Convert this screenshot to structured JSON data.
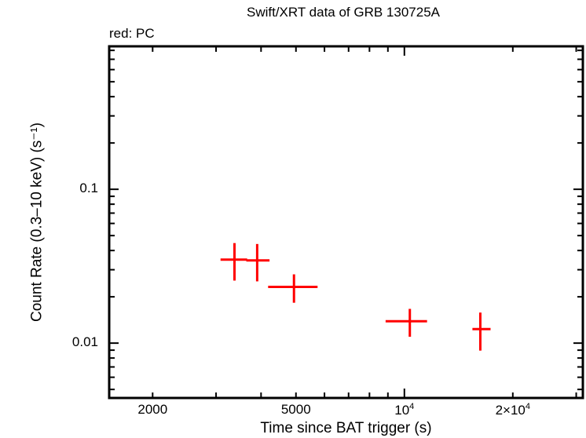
{
  "chart_data": {
    "type": "scatter",
    "title": "Swift/XRT data of GRB 130725A",
    "subtitle": "red: PC",
    "xlabel": "Time since BAT trigger (s)",
    "ylabel": "Count Rate (0.3–10 keV) (s⁻¹)",
    "xscale": "log",
    "yscale": "log",
    "xlim": [
      1515,
      31300
    ],
    "ylim": [
      0.0044,
      0.85
    ],
    "x_ticks": [
      {
        "value": 2000,
        "label": "2000"
      },
      {
        "value": 5000,
        "label": "5000"
      },
      {
        "value": 10000,
        "label": "10⁴"
      },
      {
        "value": 20000,
        "label": "2×10⁴"
      }
    ],
    "y_ticks": [
      {
        "value": 0.1,
        "label": "0.1"
      },
      {
        "value": 0.01,
        "label": "0.01"
      }
    ],
    "grid": false,
    "series": [
      {
        "name": "PC",
        "color": "#ff0000",
        "points": [
          {
            "x": 3375,
            "x_lo": 3087,
            "x_hi": 3660,
            "y": 0.0349,
            "y_lo": 0.0255,
            "y_hi": 0.0447
          },
          {
            "x": 3902,
            "x_lo": 3640,
            "x_hi": 4223,
            "y": 0.0345,
            "y_lo": 0.0252,
            "y_hi": 0.0441
          },
          {
            "x": 4937,
            "x_lo": 4185,
            "x_hi": 5741,
            "y": 0.0232,
            "y_lo": 0.0183,
            "y_hi": 0.028
          },
          {
            "x": 10355,
            "x_lo": 8869,
            "x_hi": 11560,
            "y": 0.01387,
            "y_lo": 0.011,
            "y_hi": 0.0167
          },
          {
            "x": 16250,
            "x_lo": 15450,
            "x_hi": 17350,
            "y": 0.01233,
            "y_lo": 0.00894,
            "y_hi": 0.0158
          }
        ]
      }
    ]
  }
}
